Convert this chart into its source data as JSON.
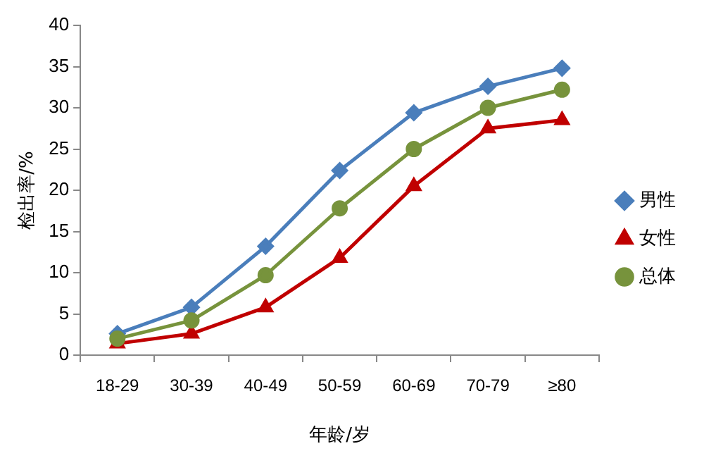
{
  "chart_data": {
    "type": "line",
    "xlabel": "年龄/岁",
    "ylabel": "检出率/%",
    "categories": [
      "18-29",
      "30-39",
      "40-49",
      "50-59",
      "60-69",
      "70-79",
      "≥80"
    ],
    "series": [
      {
        "name": "男性",
        "color": "#4a7ebb",
        "marker": "diamond",
        "values": [
          2.6,
          5.8,
          13.2,
          22.4,
          29.4,
          32.6,
          34.8
        ]
      },
      {
        "name": "女性",
        "color": "#c00000",
        "marker": "triangle",
        "values": [
          1.4,
          2.6,
          5.8,
          11.8,
          20.5,
          27.5,
          28.5
        ]
      },
      {
        "name": "总体",
        "color": "#77933c",
        "marker": "circle",
        "values": [
          2.0,
          4.2,
          9.7,
          17.8,
          25.0,
          30.0,
          32.2
        ]
      }
    ],
    "ylim": [
      0,
      40
    ],
    "yticks": [
      0,
      5,
      10,
      15,
      20,
      25,
      30,
      35,
      40
    ],
    "grid": false,
    "legend": "right"
  }
}
